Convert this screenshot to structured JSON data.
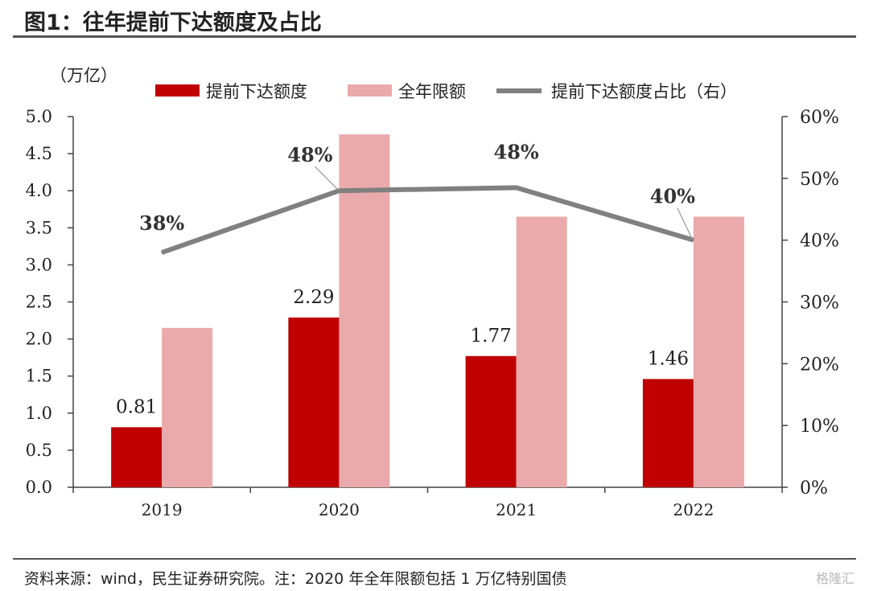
{
  "header": {
    "title": "图1：往年提前下达额度及占比"
  },
  "footer": {
    "source": "资料来源：wind，民生证券研究院。注：2020 年全年限额包括 1 万亿特别国债",
    "watermark": "格隆汇"
  },
  "chart_data": {
    "type": "bar",
    "categories": [
      "2019",
      "2020",
      "2021",
      "2022"
    ],
    "left_unit": "（万亿）",
    "series": [
      {
        "name": "提前下达额度",
        "type": "bar",
        "axis": "left",
        "values": [
          0.81,
          2.29,
          1.77,
          1.46
        ],
        "color": "#c00000"
      },
      {
        "name": "全年限额",
        "type": "bar",
        "axis": "left",
        "values": [
          2.15,
          4.76,
          3.65,
          3.65
        ],
        "color": "#eaaaab"
      },
      {
        "name": "提前下达额度占比（右）",
        "type": "line",
        "axis": "right",
        "values": [
          0.38,
          0.48,
          0.485,
          0.4
        ],
        "color": "#808080"
      }
    ],
    "bar_labels": [
      "0.81",
      "2.29",
      "1.77",
      "1.46"
    ],
    "line_labels": [
      "38%",
      "48%",
      "48%",
      "40%"
    ],
    "y_left": {
      "min": 0,
      "max": 5,
      "ticks": [
        "0.0",
        "0.5",
        "1.0",
        "1.5",
        "2.0",
        "2.5",
        "3.0",
        "3.5",
        "4.0",
        "4.5",
        "5.0"
      ]
    },
    "y_right": {
      "min": 0,
      "max": 0.6,
      "ticks": [
        "0%",
        "10%",
        "20%",
        "30%",
        "40%",
        "50%",
        "60%"
      ]
    },
    "legend": "top",
    "grid": false
  }
}
